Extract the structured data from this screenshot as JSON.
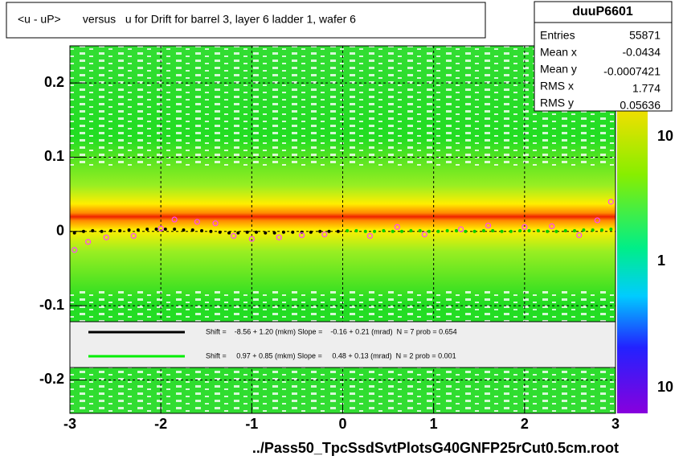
{
  "chart_data": {
    "type": "scatter",
    "title": "<u - uP>       versus   u for Drift for barrel 3, layer 6 ladder 1, wafer 6",
    "x_label": "../Pass50_TpcSsdSvtPlotsG40GNFP25rCut0.5cm.root",
    "xlim": [
      -3,
      3
    ],
    "xticks": [
      -3,
      -2,
      -1,
      0,
      1,
      2,
      3
    ],
    "ylim": [
      -0.245,
      0.25
    ],
    "yticks": [
      -0.2,
      -0.1,
      0,
      0.1,
      0.2
    ],
    "grid": true,
    "stats": {
      "name": "duuP6601",
      "rows": [
        [
          "Entries",
          "55871"
        ],
        [
          "Mean x",
          "-0.0434"
        ],
        [
          "Mean y",
          "-0.0007421"
        ],
        [
          "RMS x",
          "1.774"
        ],
        [
          "RMS y",
          "0.05636"
        ]
      ]
    },
    "colorbar_labels": [
      "10",
      "1",
      "10"
    ],
    "fits": [
      {
        "color": "#000000",
        "text": "Shift =    -8.56 + 1.20 (mkm) Slope =    -0.16 + 0.21 (mrad)  N = 7 prob = 0.654"
      },
      {
        "color": "#00ee00",
        "text": "Shift =     0.97 + 0.85 (mkm) Slope =     0.48 + 0.13 (mrad)  N = 2 prob = 0.001"
      }
    ],
    "series": [
      {
        "color": "#000000",
        "marker": "dot",
        "x": [
          -2.95,
          -2.85,
          -2.75,
          -2.65,
          -2.55,
          -2.45,
          -2.35,
          -2.25,
          -2.15,
          -2.05,
          -1.95,
          -1.85,
          -1.75,
          -1.65,
          -1.55,
          -1.45,
          -1.35,
          -1.25,
          -1.15,
          -1.05,
          -0.95,
          -0.85,
          -0.75,
          -0.65,
          -0.55,
          -0.45,
          -0.35,
          -0.25,
          -0.15,
          -0.05
        ],
        "values": [
          -0.002,
          0,
          0.001,
          0,
          0.001,
          0.001,
          0.002,
          0.002,
          0.003,
          0.003,
          0.003,
          0.003,
          0.002,
          0.002,
          0.001,
          0,
          -0.001,
          -0.002,
          -0.002,
          -0.001,
          -0.001,
          -0.002,
          -0.002,
          -0.001,
          -0.001,
          -0.001,
          -0.001,
          0,
          0,
          0
        ]
      },
      {
        "color": "#00cc00",
        "marker": "dot",
        "x": [
          0.05,
          0.15,
          0.25,
          0.35,
          0.45,
          0.55,
          0.65,
          0.75,
          0.85,
          0.95,
          1.05,
          1.15,
          1.25,
          1.35,
          1.45,
          1.55,
          1.65,
          1.75,
          1.85,
          1.95,
          2.05,
          2.15,
          2.25,
          2.35,
          2.45,
          2.55,
          2.65,
          2.75,
          2.85,
          2.95
        ],
        "values": [
          0.001,
          0.001,
          0,
          0,
          0.001,
          0,
          0,
          0.001,
          0.001,
          0,
          0,
          0.001,
          0.001,
          0,
          0,
          0.001,
          0.001,
          0,
          0,
          0.001,
          0.001,
          0.001,
          0,
          0,
          0.001,
          0.001,
          0.002,
          0.002,
          0.002,
          0.003
        ]
      },
      {
        "color": "#ff44ff",
        "marker": "circle",
        "x": [
          -2.95,
          -2.8,
          -2.6,
          -2.3,
          -2.0,
          -1.85,
          -1.6,
          -1.4,
          -1.2,
          -1.0,
          -0.7,
          -0.45,
          -0.2,
          0.3,
          0.6,
          0.9,
          1.3,
          1.6,
          2.0,
          2.3,
          2.6,
          2.8,
          2.95
        ],
        "values": [
          -0.025,
          -0.014,
          -0.008,
          -0.006,
          0.004,
          0.016,
          0.013,
          0.011,
          -0.006,
          -0.01,
          -0.008,
          -0.005,
          -0.004,
          -0.006,
          0.006,
          -0.004,
          0.003,
          0.008,
          0.006,
          0.007,
          -0.005,
          0.015,
          0.04
        ]
      }
    ]
  }
}
